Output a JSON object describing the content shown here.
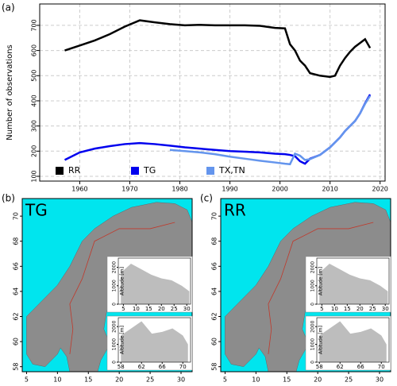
{
  "chart_data": [
    {
      "type": "line",
      "panel_label": "(a)",
      "ylabel": "Number of observations",
      "x": [
        1957,
        1960,
        1963,
        1966,
        1969,
        1972,
        1975,
        1978,
        1981,
        1984,
        1987,
        1990,
        1993,
        1996,
        1999,
        2001,
        2002,
        2003,
        2004,
        2005,
        2006,
        2008,
        2010,
        2011,
        2012,
        2013,
        2014,
        2015,
        2016,
        2017,
        2018
      ],
      "series": [
        {
          "name": "RR",
          "color": "#000000",
          "values": [
            600,
            620,
            640,
            665,
            695,
            720,
            712,
            705,
            700,
            702,
            700,
            700,
            700,
            698,
            690,
            688,
            625,
            600,
            560,
            540,
            510,
            500,
            495,
            500,
            540,
            570,
            595,
            615,
            630,
            645,
            610
          ]
        },
        {
          "name": "TG",
          "color": "#0000ee",
          "values": [
            165,
            195,
            210,
            220,
            228,
            232,
            228,
            222,
            215,
            210,
            205,
            200,
            198,
            195,
            190,
            188,
            185,
            180,
            160,
            150,
            170,
            185,
            215,
            235,
            255,
            280,
            300,
            320,
            350,
            390,
            425
          ]
        },
        {
          "name": "TX,TN",
          "color": "#6495ed",
          "values": [
            null,
            null,
            null,
            null,
            null,
            null,
            null,
            205,
            200,
            195,
            188,
            178,
            170,
            162,
            155,
            150,
            148,
            190,
            182,
            165,
            168,
            185,
            215,
            235,
            255,
            280,
            300,
            320,
            350,
            388,
            420
          ]
        }
      ],
      "xlim": [
        1952,
        2021
      ],
      "xticks": [
        1960,
        1970,
        1980,
        1990,
        2000,
        2010,
        2020
      ],
      "ylim": [
        81,
        785
      ],
      "yticks": [
        100,
        200,
        300,
        400,
        500,
        600,
        700
      ],
      "grid": true,
      "legend": "bottom"
    },
    {
      "type": "map",
      "panel_label": "(b)",
      "title": "TG",
      "xlim": [
        4.3,
        31.8
      ],
      "xticks": [
        5,
        10,
        15,
        20,
        25,
        30
      ],
      "ylim": [
        57.6,
        71.4
      ],
      "yticks": [
        58,
        60,
        62,
        64,
        66,
        68,
        70
      ]
    },
    {
      "type": "inset",
      "ylabel": "Altitude [m]",
      "x": [
        4,
        8,
        12,
        16,
        20,
        24,
        28,
        31
      ],
      "values": [
        1700,
        2200,
        1900,
        1600,
        1400,
        1300,
        1000,
        700
      ],
      "xlim": [
        3,
        31.5
      ],
      "xticks": [
        5,
        10,
        15,
        20,
        25,
        30
      ],
      "ylim": [
        0,
        2500
      ],
      "yticks": [
        0,
        1000,
        2000
      ]
    },
    {
      "type": "inset",
      "ylabel": "Altitude [m]",
      "x": [
        58,
        60,
        62,
        64,
        66,
        68,
        70,
        71
      ],
      "values": [
        1500,
        1900,
        2300,
        1600,
        1700,
        1900,
        1500,
        1000
      ],
      "xlim": [
        57.5,
        71.5
      ],
      "xticks": [
        58,
        62,
        66,
        70
      ],
      "ylim": [
        0,
        2500
      ],
      "yticks": [
        0,
        1000,
        2000
      ]
    },
    {
      "type": "map",
      "panel_label": "(c)",
      "title": "RR",
      "xlim": [
        4.3,
        31.8
      ],
      "xticks": [
        5,
        10,
        15,
        20,
        25,
        30
      ],
      "ylim": [
        57.6,
        71.4
      ],
      "yticks": [
        58,
        60,
        62,
        64,
        66,
        68,
        70
      ]
    },
    {
      "type": "inset",
      "ylabel": "Altitude [m]",
      "x": [
        4,
        8,
        12,
        16,
        20,
        24,
        28,
        31
      ],
      "values": [
        1700,
        2200,
        1900,
        1600,
        1400,
        1300,
        1000,
        700
      ],
      "xlim": [
        3,
        31.5
      ],
      "xticks": [
        5,
        10,
        15,
        20,
        25,
        30
      ],
      "ylim": [
        0,
        2500
      ],
      "yticks": [
        0,
        1000,
        2000
      ]
    },
    {
      "type": "inset",
      "ylabel": "Altitude [m]",
      "x": [
        58,
        60,
        62,
        64,
        66,
        68,
        70,
        71
      ],
      "values": [
        1500,
        1900,
        2300,
        1600,
        1700,
        1900,
        1500,
        1000
      ],
      "xlim": [
        57.5,
        71.5
      ],
      "xticks": [
        58,
        62,
        66,
        70
      ],
      "ylim": [
        0,
        2500
      ],
      "yticks": [
        0,
        1000,
        2000
      ]
    }
  ]
}
